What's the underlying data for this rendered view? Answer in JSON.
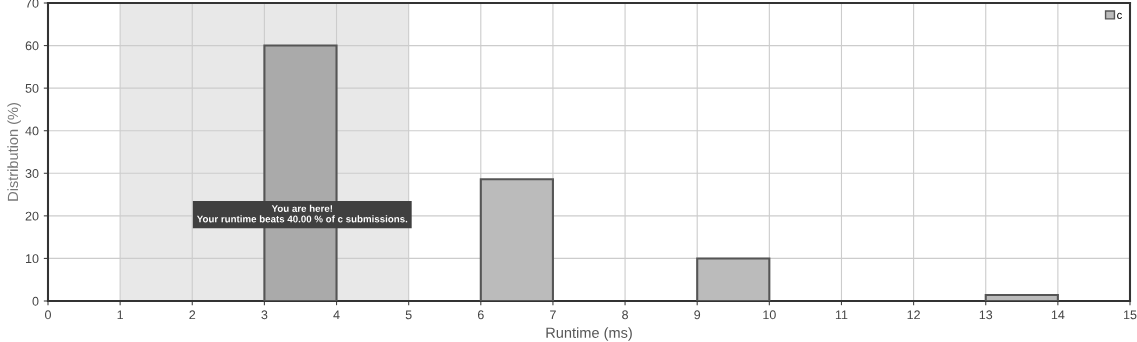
{
  "chart_data": {
    "type": "histogram",
    "xlabel": "Runtime (ms)",
    "ylabel": "Distribution (%)",
    "bins": [
      0,
      1,
      2,
      3,
      4,
      5,
      6,
      7,
      8,
      9,
      10,
      11,
      12,
      13,
      14,
      15
    ],
    "series": [
      {
        "name": "c",
        "color": "#bbbbbb",
        "values": [
          0,
          0,
          0,
          60,
          0,
          0,
          28.6,
          0,
          0,
          10,
          0,
          0,
          0,
          1.4,
          0
        ],
        "colors": [
          "#bbbbbb",
          "#bbbbbb",
          "#bbbbbb",
          "#aaaaaa",
          "#bbbbbb",
          "#bbbbbb",
          "#bbbbbb",
          "#bbbbbb",
          "#bbbbbb",
          "#bbbbbb",
          "#bbbbbb",
          "#bbbbbb",
          "#bbbbbb",
          "#bbbbbb",
          "#bbbbbb"
        ]
      }
    ],
    "bands": [
      {
        "axis": "x",
        "from": 1,
        "to": 5,
        "color": "#e8e8e8"
      }
    ],
    "annotations": [
      "You are here!\nYour runtime beats 40.00 % of c submissions."
    ],
    "xlim": [
      0,
      15
    ],
    "xticks": [
      0,
      1,
      2,
      3,
      4,
      5,
      6,
      7,
      8,
      9,
      10,
      11,
      12,
      13,
      14,
      15
    ],
    "ylim": [
      0,
      70
    ],
    "yticks": [
      0,
      10,
      20,
      30,
      40,
      50,
      60,
      70
    ],
    "grid": true,
    "legend": "top right"
  }
}
